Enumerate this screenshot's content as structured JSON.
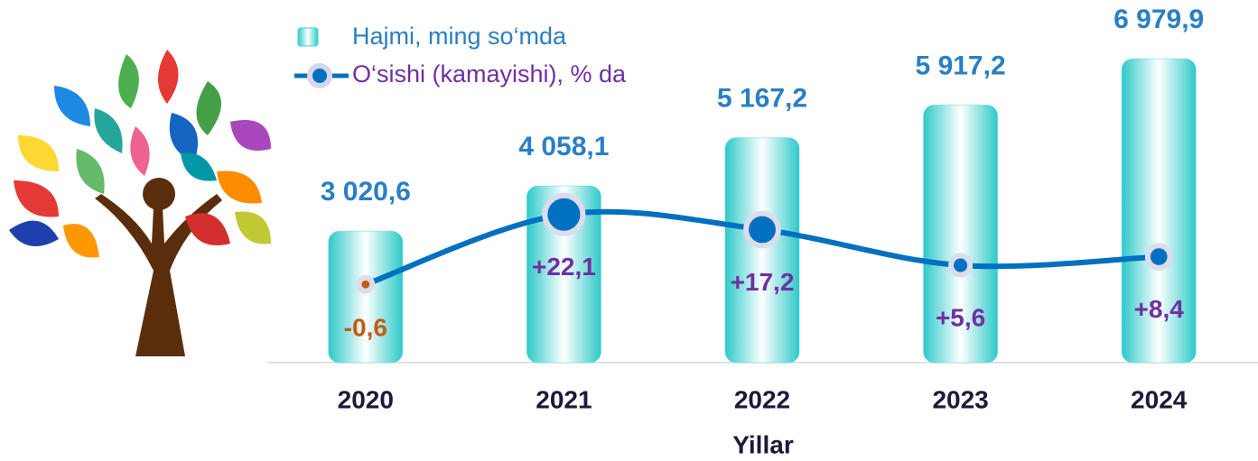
{
  "chart_data": {
    "type": "bar",
    "x_label": "Yillar",
    "categories": [
      "2020",
      "2021",
      "2022",
      "2023",
      "2024"
    ],
    "ylim": [
      0,
      7500
    ],
    "y2lim": [
      -26,
      80
    ],
    "series": [
      {
        "name": "Hajmi, ming so‘mda",
        "type": "bar",
        "color": "#3fd1d1",
        "values": [
          3020.6,
          4058.1,
          5167.2,
          5917.2,
          6979.9
        ],
        "value_labels": [
          "3 020,6",
          "4 058,1",
          "5 167,2",
          "5 917,2",
          "6 979,9"
        ],
        "label_color": "#2a7fc4"
      },
      {
        "name": "O‘sishi (kamayishi), % da",
        "type": "line",
        "axis": "y2",
        "color": "#0070c0",
        "values": [
          -0.6,
          22.1,
          17.2,
          5.6,
          8.4
        ],
        "value_labels": [
          "-0,6",
          "+22,1",
          "+17,2",
          "+5,6",
          "+8,4"
        ],
        "value_label_colors": [
          "#c55a11",
          "#7030a0",
          "#7030a0",
          "#7030a0",
          "#7030a0"
        ]
      }
    ]
  }
}
